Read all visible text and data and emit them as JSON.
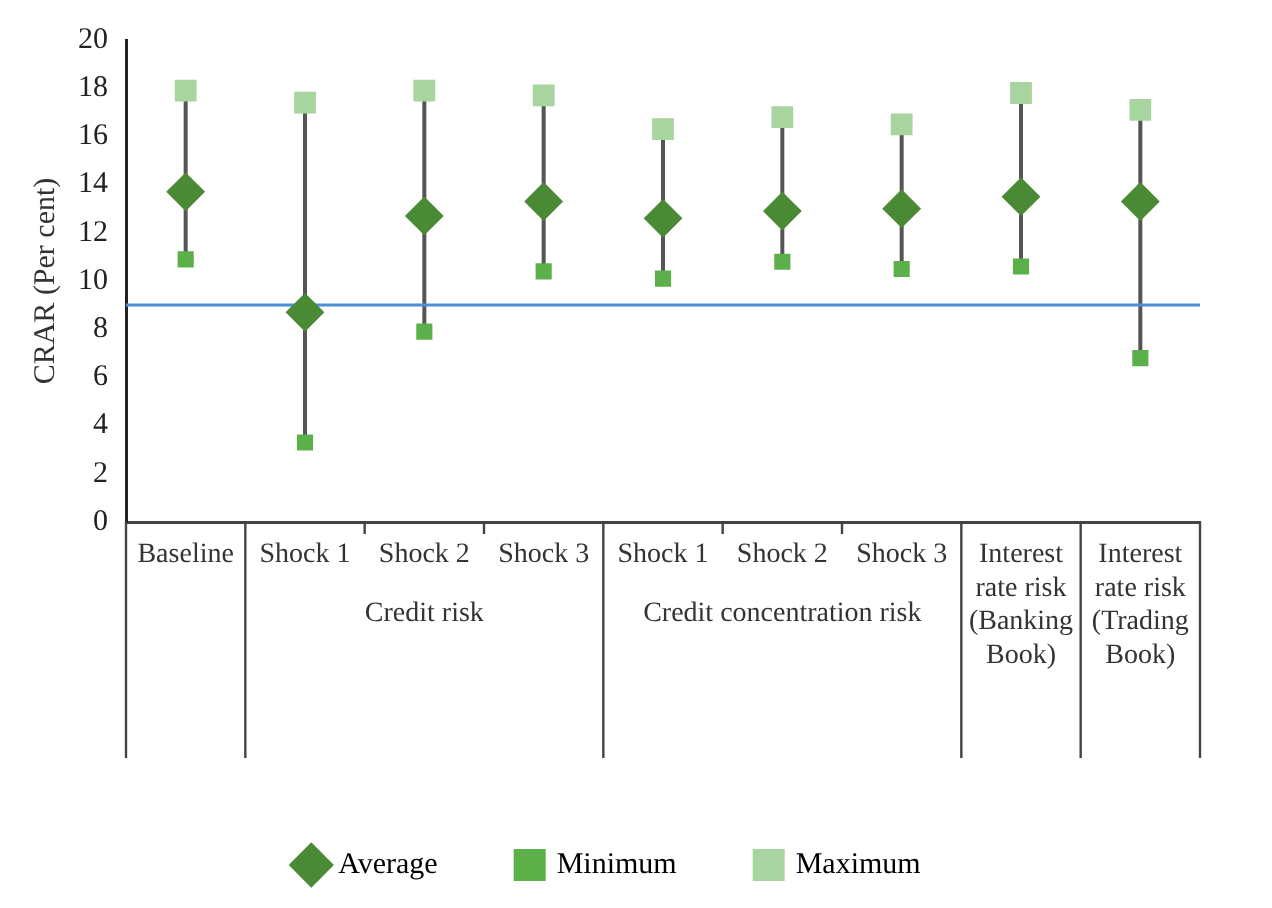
{
  "chart_data": {
    "type": "scatter",
    "ylabel": "CRAR (Per cent)",
    "categories": [
      "Baseline",
      "Shock 1",
      "Shock 2",
      "Shock 3",
      "Shock 1",
      "Shock 2",
      "Shock 3",
      "Interest rate risk (Banking Book)",
      "Interest rate risk (Trading Book)"
    ],
    "series": [
      {
        "name": "Average",
        "color": "#4a8a35",
        "marker": "diamond",
        "values": [
          13.7,
          8.7,
          12.7,
          13.3,
          12.6,
          12.9,
          13.0,
          13.5,
          13.3
        ]
      },
      {
        "name": "Minimum",
        "color": "#5cb04a",
        "marker": "square",
        "values": [
          10.9,
          3.3,
          7.9,
          10.4,
          10.1,
          10.8,
          10.5,
          10.6,
          6.8
        ]
      },
      {
        "name": "Maximum",
        "color": "#a8d4a0",
        "marker": "square",
        "values": [
          17.9,
          17.4,
          17.9,
          17.7,
          16.3,
          16.8,
          16.5,
          17.8,
          17.1
        ]
      }
    ],
    "ylim": [
      0,
      20
    ],
    "yticks": [
      0,
      2,
      4,
      6,
      8,
      10,
      12,
      14,
      16,
      18,
      20
    ],
    "ref_lines": [
      {
        "axis": "y",
        "value": 9.0,
        "color": "#4a90d9"
      }
    ],
    "annotations": [
      "Credit risk",
      "Credit concentration risk"
    ],
    "grid": "x",
    "legend": "bottom"
  }
}
